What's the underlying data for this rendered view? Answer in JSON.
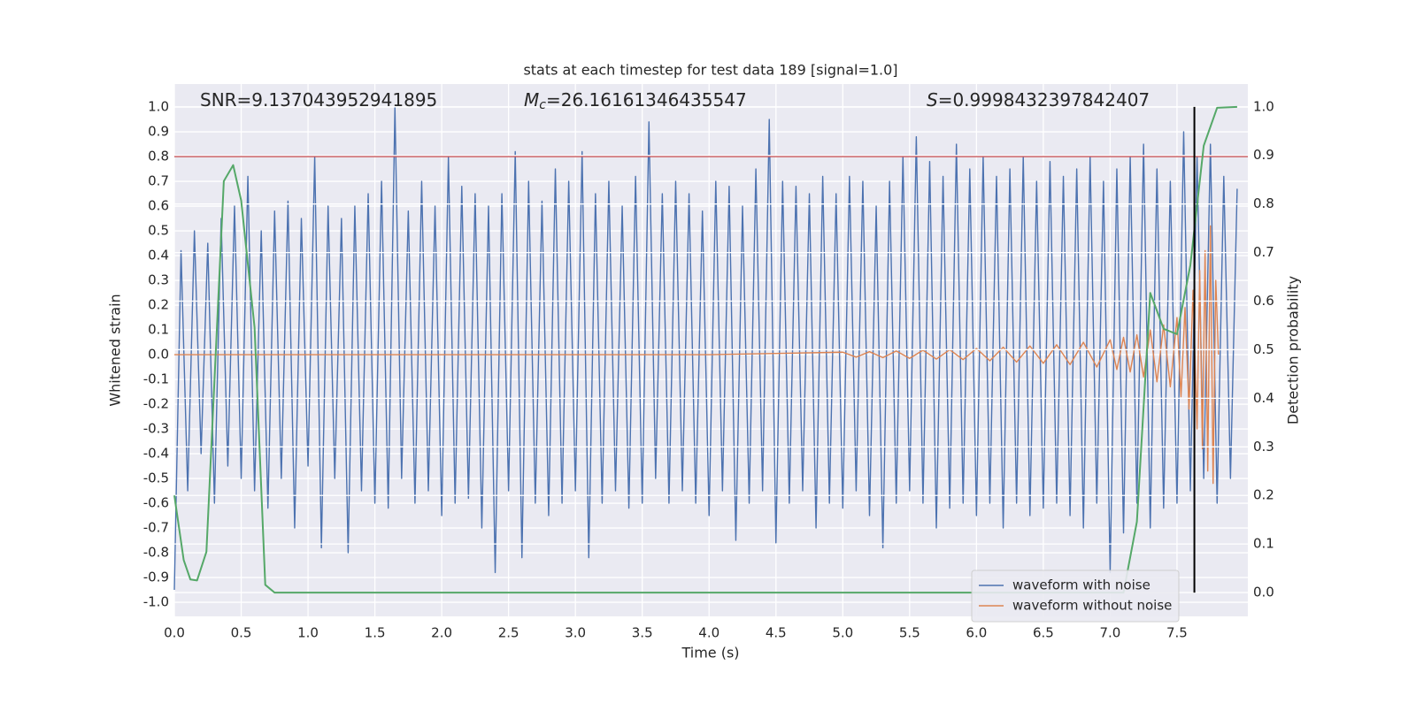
{
  "chart_data": {
    "type": "line",
    "title": "stats at each timestep for test data 189 [signal=1.0]",
    "xlabel": "Time (s)",
    "ylabel": "Whitened strain",
    "y2label": "Detection probability",
    "annotations": [
      {
        "text": "SNR=9.137043952941895"
      },
      {
        "symbol": "M",
        "subscript": "c",
        "text": "=26.16161346435547"
      },
      {
        "symbol": "S",
        "text": "=0.9998432397842407"
      }
    ],
    "xlim": [
      0,
      8.03
    ],
    "ylim": [
      -1.057,
      1.093
    ],
    "y2lim": [
      -0.049,
      1.047
    ],
    "xticks": [
      {
        "value": 0,
        "label": "0.0"
      },
      0.5,
      {
        "value": 1,
        "label": "1.0"
      },
      1.5,
      {
        "value": 2,
        "label": "2.0"
      },
      2.5,
      {
        "value": 3,
        "label": "3.0"
      },
      3.5,
      {
        "value": 4,
        "label": "4.0"
      },
      4.5,
      {
        "value": 5,
        "label": "5.0"
      },
      5.5,
      {
        "value": 6,
        "label": "6.0"
      },
      6.5,
      {
        "value": 7,
        "label": "7.0"
      },
      7.5
    ],
    "yticks": [
      {
        "value": -1,
        "label": "-1.0"
      },
      -0.9,
      -0.8,
      -0.7,
      -0.6,
      -0.5,
      -0.4,
      -0.3,
      -0.2,
      -0.1,
      {
        "value": 0,
        "label": "0.0"
      },
      0.1,
      0.2,
      0.3,
      0.4,
      0.5,
      0.6,
      0.7,
      0.8,
      0.9,
      {
        "value": 1,
        "label": "1.0"
      }
    ],
    "y2ticks": [
      {
        "value": 0,
        "label": "0.0"
      },
      0.1,
      0.2,
      0.3,
      0.4,
      0.5,
      0.6,
      0.7,
      0.8,
      0.9,
      {
        "value": 1,
        "label": "1.0"
      }
    ],
    "grid": true,
    "legend_loc": "lower right",
    "series": [
      {
        "name": "waveform with noise",
        "color": "#4c72b0",
        "x": [
          0,
          0.05,
          0.1,
          0.15,
          0.2,
          0.25,
          0.3,
          0.35,
          0.4,
          0.45,
          0.5,
          0.55,
          0.6,
          0.65,
          0.7,
          0.75,
          0.8,
          0.85,
          0.9,
          0.95,
          1,
          1.05,
          1.1,
          1.15,
          1.2,
          1.25,
          1.3,
          1.35,
          1.4,
          1.45,
          1.5,
          1.55,
          1.6,
          1.65,
          1.7,
          1.75,
          1.8,
          1.85,
          1.9,
          1.95,
          2,
          2.05,
          2.1,
          2.15,
          2.2,
          2.25,
          2.3,
          2.35,
          2.4,
          2.45,
          2.5,
          2.55,
          2.6,
          2.65,
          2.7,
          2.75,
          2.8,
          2.85,
          2.9,
          2.95,
          3,
          3.05,
          3.1,
          3.15,
          3.2,
          3.25,
          3.3,
          3.35,
          3.4,
          3.45,
          3.5,
          3.55,
          3.6,
          3.65,
          3.7,
          3.75,
          3.8,
          3.85,
          3.9,
          3.95,
          4,
          4.05,
          4.1,
          4.15,
          4.2,
          4.25,
          4.3,
          4.35,
          4.4,
          4.45,
          4.5,
          4.55,
          4.6,
          4.65,
          4.7,
          4.75,
          4.8,
          4.85,
          4.9,
          4.95,
          5,
          5.05,
          5.1,
          5.15,
          5.2,
          5.25,
          5.3,
          5.35,
          5.4,
          5.45,
          5.5,
          5.55,
          5.6,
          5.65,
          5.7,
          5.75,
          5.8,
          5.85,
          5.9,
          5.95,
          6,
          6.05,
          6.1,
          6.15,
          6.2,
          6.25,
          6.3,
          6.35,
          6.4,
          6.45,
          6.5,
          6.55,
          6.6,
          6.65,
          6.7,
          6.75,
          6.8,
          6.85,
          6.9,
          6.95,
          7,
          7.05,
          7.1,
          7.15,
          7.2,
          7.25,
          7.3,
          7.35,
          7.4,
          7.45,
          7.5,
          7.55,
          7.6,
          7.65,
          7.7,
          7.75,
          7.8,
          7.85,
          7.9,
          7.95
        ],
        "values": [
          -0.95,
          0.42,
          -0.55,
          0.5,
          -0.4,
          0.45,
          -0.6,
          0.55,
          -0.45,
          0.6,
          -0.5,
          0.72,
          -0.55,
          0.5,
          -0.62,
          0.58,
          -0.5,
          0.62,
          -0.7,
          0.55,
          -0.45,
          0.8,
          -0.78,
          0.6,
          -0.5,
          0.55,
          -0.8,
          0.6,
          -0.55,
          0.65,
          -0.6,
          0.7,
          -0.62,
          1.0,
          -0.5,
          0.58,
          -0.6,
          0.7,
          -0.55,
          0.6,
          -0.65,
          0.8,
          -0.6,
          0.68,
          -0.58,
          0.65,
          -0.7,
          0.6,
          -0.88,
          0.65,
          -0.55,
          0.82,
          -0.82,
          0.7,
          -0.6,
          0.62,
          -0.65,
          0.75,
          -0.6,
          0.7,
          -0.55,
          0.82,
          -0.82,
          0.65,
          -0.6,
          0.7,
          -0.55,
          0.6,
          -0.62,
          0.72,
          -0.6,
          0.94,
          -0.5,
          0.65,
          -0.6,
          0.7,
          -0.55,
          0.65,
          -0.6,
          0.58,
          -0.65,
          0.7,
          -0.55,
          0.68,
          -0.75,
          0.6,
          -0.6,
          0.75,
          -0.55,
          0.95,
          -0.76,
          0.7,
          -0.6,
          0.68,
          -0.55,
          0.65,
          -0.7,
          0.72,
          -0.6,
          0.65,
          -0.62,
          0.72,
          -0.55,
          0.7,
          -0.65,
          0.6,
          -0.78,
          0.7,
          -0.6,
          0.8,
          -0.55,
          0.88,
          -0.6,
          0.78,
          -0.7,
          0.72,
          -0.62,
          0.85,
          -0.6,
          0.75,
          -0.65,
          0.8,
          -0.6,
          0.72,
          -0.7,
          0.75,
          -0.6,
          0.8,
          -0.65,
          0.7,
          -0.62,
          0.78,
          -0.6,
          0.72,
          -0.65,
          0.75,
          -0.7,
          0.8,
          -0.6,
          0.7,
          -0.88,
          0.75,
          -0.72,
          0.8,
          -0.6,
          0.85,
          -0.7,
          0.75,
          -0.62,
          0.7,
          -0.6,
          0.9,
          -0.55,
          0.8,
          -0.5,
          0.85,
          -0.6,
          0.72,
          -0.5,
          0.67
        ]
      },
      {
        "name": "waveform without noise",
        "color": "#dd8452",
        "x": [
          0,
          1,
          2,
          3,
          4,
          5,
          5.1,
          5.2,
          5.3,
          5.4,
          5.5,
          5.6,
          5.7,
          5.8,
          5.9,
          6,
          6.1,
          6.2,
          6.3,
          6.4,
          6.5,
          6.6,
          6.7,
          6.8,
          6.9,
          7,
          7.05,
          7.1,
          7.15,
          7.2,
          7.25,
          7.3,
          7.35,
          7.4,
          7.45,
          7.5,
          7.53,
          7.56,
          7.59,
          7.62,
          7.65,
          7.67,
          7.69,
          7.71,
          7.73,
          7.75,
          7.77,
          7.79,
          7.81
        ],
        "values": [
          0,
          0,
          0,
          0,
          0,
          0.01,
          -0.01,
          0.012,
          -0.012,
          0.015,
          -0.015,
          0.018,
          -0.018,
          0.02,
          -0.02,
          0.025,
          -0.025,
          0.03,
          -0.03,
          0.035,
          -0.035,
          0.04,
          -0.04,
          0.05,
          -0.05,
          0.06,
          -0.06,
          0.07,
          -0.07,
          0.08,
          -0.09,
          0.1,
          -0.11,
          0.12,
          -0.13,
          0.15,
          -0.17,
          0.19,
          -0.22,
          0.26,
          -0.3,
          0.34,
          -0.38,
          0.42,
          -0.47,
          0.52,
          -0.52,
          0.3,
          0
        ]
      },
      {
        "color": "#55a868",
        "axis": "y2",
        "x": [
          0,
          0.07,
          0.12,
          0.17,
          0.24,
          0.37,
          0.44,
          0.5,
          0.6,
          0.68,
          0.75,
          1,
          7.1,
          7.2,
          7.3,
          7.4,
          7.5,
          7.6,
          7.7,
          7.8,
          7.95
        ],
        "values": [
          0.2,
          0.067,
          0.027,
          0.025,
          0.084,
          0.847,
          0.88,
          0.807,
          0.546,
          0.016,
          0,
          0,
          0,
          0.146,
          0.617,
          0.543,
          0.532,
          0.674,
          0.92,
          0.998,
          1
        ]
      }
    ],
    "hline": {
      "y": 0.8,
      "color": "#c44e52"
    },
    "vline": {
      "x": 7.63,
      "y2range": [
        0,
        1
      ],
      "color": "#000000"
    }
  }
}
